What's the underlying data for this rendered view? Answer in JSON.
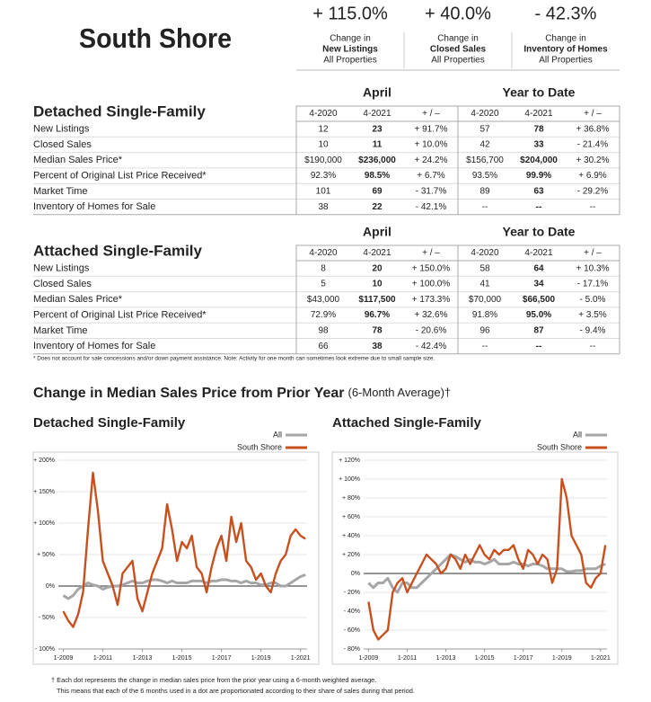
{
  "header": {
    "title": "South Shore",
    "stats": [
      {
        "value": "+ 115.0%",
        "line1": "Change in",
        "line2": "New Listings",
        "line3": "All Properties"
      },
      {
        "value": "+ 40.0%",
        "line1": "Change in",
        "line2": "Closed Sales",
        "line3": "All Properties"
      },
      {
        "value": "- 42.3%",
        "line1": "Change in",
        "line2": "Inventory of Homes",
        "line3": "All Properties"
      }
    ]
  },
  "tables": [
    {
      "title": "Detached Single-Family",
      "groups": [
        "April",
        "Year to Date"
      ],
      "columns": [
        "4-2020",
        "4-2021",
        "+ / –",
        "4-2020",
        "4-2021",
        "+ / –"
      ],
      "rows": [
        [
          "New Listings",
          "12",
          "23",
          "+ 91.7%",
          "57",
          "78",
          "+ 36.8%"
        ],
        [
          "Closed Sales",
          "10",
          "11",
          "+ 10.0%",
          "42",
          "33",
          "- 21.4%"
        ],
        [
          "Median Sales Price*",
          "$190,000",
          "$236,000",
          "+ 24.2%",
          "$156,700",
          "$204,000",
          "+ 30.2%"
        ],
        [
          "Percent of Original List Price Received*",
          "92.3%",
          "98.5%",
          "+ 6.7%",
          "93.5%",
          "99.9%",
          "+ 6.9%"
        ],
        [
          "Market Time",
          "101",
          "69",
          "- 31.7%",
          "89",
          "63",
          "- 29.2%"
        ],
        [
          "Inventory of Homes for Sale",
          "38",
          "22",
          "- 42.1%",
          "--",
          "--",
          "--"
        ]
      ]
    },
    {
      "title": "Attached Single-Family",
      "groups": [
        "April",
        "Year to Date"
      ],
      "columns": [
        "4-2020",
        "4-2021",
        "+ / –",
        "4-2020",
        "4-2021",
        "+ / –"
      ],
      "rows": [
        [
          "New Listings",
          "8",
          "20",
          "+ 150.0%",
          "58",
          "64",
          "+ 10.3%"
        ],
        [
          "Closed Sales",
          "5",
          "10",
          "+ 100.0%",
          "41",
          "34",
          "- 17.1%"
        ],
        [
          "Median Sales Price*",
          "$43,000",
          "$117,500",
          "+ 173.3%",
          "$70,000",
          "$66,500",
          "- 5.0%"
        ],
        [
          "Percent of Original List Price Received*",
          "72.9%",
          "96.7%",
          "+ 32.6%",
          "91.8%",
          "95.0%",
          "+ 3.5%"
        ],
        [
          "Market Time",
          "98",
          "78",
          "- 20.6%",
          "96",
          "87",
          "- 9.4%"
        ],
        [
          "Inventory of Homes for Sale",
          "66",
          "38",
          "- 42.4%",
          "--",
          "--",
          "--"
        ]
      ]
    }
  ],
  "footnote": "* Does not account for sale concessions and/or down payment assistance. Note: Activity for one month can sometimes look extreme due to small sample size.",
  "section_title": {
    "main": "Change in Median Sales Price from Prior Year",
    "note": "(6-Month Average)†"
  },
  "chart_data": [
    {
      "type": "line",
      "title": "Detached Single-Family",
      "legend": "top-right",
      "grid": true,
      "x": [
        "1-2009",
        "4-2009",
        "7-2009",
        "10-2009",
        "1-2010",
        "4-2010",
        "7-2010",
        "10-2010",
        "1-2011",
        "4-2011",
        "7-2011",
        "10-2011",
        "1-2012",
        "4-2012",
        "7-2012",
        "10-2012",
        "1-2013",
        "4-2013",
        "7-2013",
        "10-2013",
        "1-2014",
        "4-2014",
        "7-2014",
        "10-2014",
        "1-2015",
        "4-2015",
        "7-2015",
        "10-2015",
        "1-2016",
        "4-2016",
        "7-2016",
        "10-2016",
        "1-2017",
        "4-2017",
        "7-2017",
        "10-2017",
        "1-2018",
        "4-2018",
        "7-2018",
        "10-2018",
        "1-2019",
        "4-2019",
        "7-2019",
        "10-2019",
        "1-2020",
        "4-2020",
        "7-2020",
        "10-2020",
        "1-2021",
        "4-2021"
      ],
      "xlim": [
        "10-2008",
        "5-2021"
      ],
      "xticks": [
        "1-2009",
        "1-2011",
        "1-2013",
        "1-2015",
        "1-2017",
        "1-2019",
        "1-2021"
      ],
      "ylim": [
        -100,
        200
      ],
      "yticks": [
        {
          "value": -100,
          "label": "- 100%"
        },
        {
          "value": -50,
          "label": "- 50%"
        },
        {
          "value": 0,
          "label": "0%"
        },
        {
          "value": 50,
          "label": "+ 50%"
        },
        {
          "value": 100,
          "label": "+ 100%"
        },
        {
          "value": 150,
          "label": "+ 150%"
        },
        {
          "value": 200,
          "label": "+ 200%"
        }
      ],
      "series": [
        {
          "name": "All",
          "color": "#a6a6a6",
          "values": [
            -15,
            -20,
            -15,
            -5,
            0,
            5,
            2,
            0,
            -5,
            -2,
            0,
            0,
            2,
            5,
            8,
            5,
            5,
            8,
            10,
            10,
            8,
            5,
            8,
            5,
            5,
            5,
            8,
            8,
            8,
            5,
            8,
            8,
            10,
            10,
            8,
            8,
            5,
            8,
            5,
            5,
            2,
            2,
            5,
            5,
            0,
            0,
            5,
            10,
            15,
            18
          ]
        },
        {
          "name": "South Shore",
          "color": "#c8501e",
          "values": [
            -40,
            -55,
            -65,
            -45,
            -10,
            90,
            180,
            120,
            40,
            20,
            0,
            -30,
            20,
            30,
            40,
            -20,
            -40,
            -10,
            20,
            40,
            60,
            130,
            90,
            40,
            70,
            60,
            80,
            30,
            20,
            -10,
            30,
            60,
            80,
            40,
            110,
            70,
            100,
            40,
            30,
            10,
            20,
            0,
            -10,
            20,
            40,
            50,
            80,
            90,
            80,
            75
          ]
        }
      ]
    },
    {
      "type": "line",
      "title": "Attached Single-Family",
      "legend": "top-right",
      "grid": true,
      "x": [
        "1-2009",
        "4-2009",
        "7-2009",
        "10-2009",
        "1-2010",
        "4-2010",
        "7-2010",
        "10-2010",
        "1-2011",
        "4-2011",
        "7-2011",
        "10-2011",
        "1-2012",
        "4-2012",
        "7-2012",
        "10-2012",
        "1-2013",
        "4-2013",
        "7-2013",
        "10-2013",
        "1-2014",
        "4-2014",
        "7-2014",
        "10-2014",
        "1-2015",
        "4-2015",
        "7-2015",
        "10-2015",
        "1-2016",
        "4-2016",
        "7-2016",
        "10-2016",
        "1-2017",
        "4-2017",
        "7-2017",
        "10-2017",
        "1-2018",
        "4-2018",
        "7-2018",
        "10-2018",
        "1-2019",
        "4-2019",
        "7-2019",
        "10-2019",
        "1-2020",
        "4-2020",
        "7-2020",
        "10-2020",
        "1-2021",
        "4-2021"
      ],
      "xlim": [
        "10-2008",
        "5-2021"
      ],
      "xticks": [
        "1-2009",
        "1-2011",
        "1-2013",
        "1-2015",
        "1-2017",
        "1-2019",
        "1-2021"
      ],
      "ylim": [
        -80,
        120
      ],
      "yticks": [
        {
          "value": -80,
          "label": "- 80%"
        },
        {
          "value": -60,
          "label": "- 60%"
        },
        {
          "value": -40,
          "label": "- 40%"
        },
        {
          "value": -20,
          "label": "- 20%"
        },
        {
          "value": 0,
          "label": "0%"
        },
        {
          "value": 20,
          "label": "+ 20%"
        },
        {
          "value": 40,
          "label": "+ 40%"
        },
        {
          "value": 60,
          "label": "+ 60%"
        },
        {
          "value": 80,
          "label": "+ 80%"
        },
        {
          "value": 100,
          "label": "+ 100%"
        },
        {
          "value": 120,
          "label": "+ 120%"
        }
      ],
      "series": [
        {
          "name": "All",
          "color": "#a6a6a6",
          "values": [
            -10,
            -15,
            -10,
            -10,
            -5,
            -15,
            -20,
            -10,
            -10,
            -15,
            -15,
            -10,
            -5,
            0,
            5,
            10,
            15,
            20,
            18,
            15,
            12,
            15,
            12,
            12,
            10,
            12,
            15,
            10,
            10,
            10,
            12,
            10,
            10,
            8,
            10,
            10,
            8,
            5,
            5,
            5,
            5,
            2,
            2,
            3,
            3,
            5,
            5,
            5,
            8,
            10
          ]
        },
        {
          "name": "South Shore",
          "color": "#c8501e",
          "values": [
            -30,
            -60,
            -70,
            -65,
            -60,
            -20,
            -10,
            -5,
            -20,
            -10,
            0,
            10,
            20,
            15,
            10,
            0,
            5,
            20,
            15,
            5,
            20,
            10,
            20,
            30,
            20,
            15,
            25,
            20,
            25,
            25,
            30,
            15,
            5,
            25,
            20,
            10,
            20,
            15,
            -10,
            5,
            100,
            80,
            40,
            30,
            20,
            -10,
            -15,
            -5,
            0,
            30
          ]
        }
      ]
    }
  ],
  "bottom_note": [
    "† Each dot represents the change in median sales price from the prior year using a 6-month weighted average.",
    "This means that each of the 6 months used in a dot are proportionated according to their share of sales during that period."
  ]
}
